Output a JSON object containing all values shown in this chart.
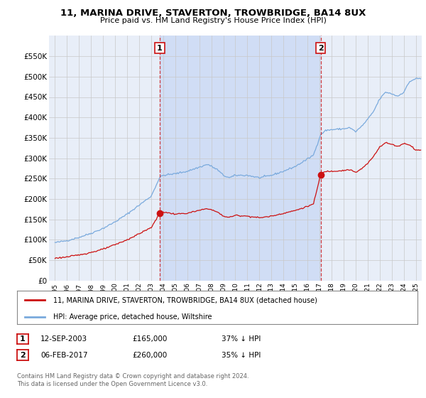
{
  "title": "11, MARINA DRIVE, STAVERTON, TROWBRIDGE, BA14 8UX",
  "subtitle": "Price paid vs. HM Land Registry's House Price Index (HPI)",
  "background_color": "#ffffff",
  "plot_bg_color": "#e8eef8",
  "shade_color": "#d0ddf5",
  "grid_color": "#c8c8c8",
  "hpi_color": "#7aaadd",
  "price_color": "#cc1111",
  "sale1_date_label": "12-SEP-2003",
  "sale1_price_label": "£165,000",
  "sale1_note": "37% ↓ HPI",
  "sale2_date_label": "06-FEB-2017",
  "sale2_price_label": "£260,000",
  "sale2_note": "35% ↓ HPI",
  "legend_label1": "11, MARINA DRIVE, STAVERTON, TROWBRIDGE, BA14 8UX (detached house)",
  "legend_label2": "HPI: Average price, detached house, Wiltshire",
  "footnote": "Contains HM Land Registry data © Crown copyright and database right 2024.\nThis data is licensed under the Open Government Licence v3.0.",
  "ylim": [
    0,
    600000
  ],
  "yticks": [
    0,
    50000,
    100000,
    150000,
    200000,
    250000,
    300000,
    350000,
    400000,
    450000,
    500000,
    550000
  ],
  "ytick_labels": [
    "£0",
    "£50K",
    "£100K",
    "£150K",
    "£200K",
    "£250K",
    "£300K",
    "£350K",
    "£400K",
    "£450K",
    "£500K",
    "£550K"
  ],
  "sale1_x": 2003.71,
  "sale1_y": 165000,
  "sale2_x": 2017.09,
  "sale2_y": 260000,
  "xmin": 1994.5,
  "xmax": 2025.5,
  "xtick_years": [
    1995,
    1996,
    1997,
    1998,
    1999,
    2000,
    2001,
    2002,
    2003,
    2004,
    2005,
    2006,
    2007,
    2008,
    2009,
    2010,
    2011,
    2012,
    2013,
    2014,
    2015,
    2016,
    2017,
    2018,
    2019,
    2020,
    2021,
    2022,
    2023,
    2024,
    2025
  ]
}
